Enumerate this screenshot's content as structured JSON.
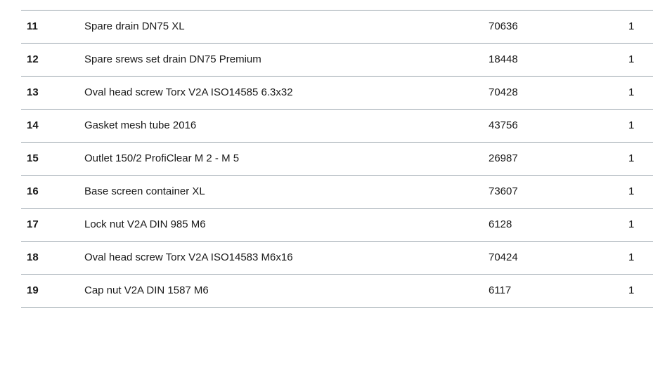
{
  "rows": [
    {
      "pos": "11",
      "name": "Spare drain DN75 XL",
      "article": "70636",
      "qty": "1"
    },
    {
      "pos": "12",
      "name": "Spare srews set drain DN75 Premium",
      "article": "18448",
      "qty": "1"
    },
    {
      "pos": "13",
      "name": "Oval head screw Torx V2A ISO14585 6.3x32",
      "article": "70428",
      "qty": "1"
    },
    {
      "pos": "14",
      "name": "Gasket mesh tube 2016",
      "article": "43756",
      "qty": "1"
    },
    {
      "pos": "15",
      "name": "Outlet 150/2 ProfiClear M 2 - M 5",
      "article": "26987",
      "qty": "1"
    },
    {
      "pos": "16",
      "name": "Base screen container XL",
      "article": "73607",
      "qty": "1"
    },
    {
      "pos": "17",
      "name": "Lock nut V2A DIN 985 M6",
      "article": "6128",
      "qty": "1"
    },
    {
      "pos": "18",
      "name": "Oval head screw Torx V2A ISO14583 M6x16",
      "article": "70424",
      "qty": "1"
    },
    {
      "pos": "19",
      "name": "Cap nut V2A DIN 1587 M6",
      "article": "6117",
      "qty": "1"
    }
  ]
}
